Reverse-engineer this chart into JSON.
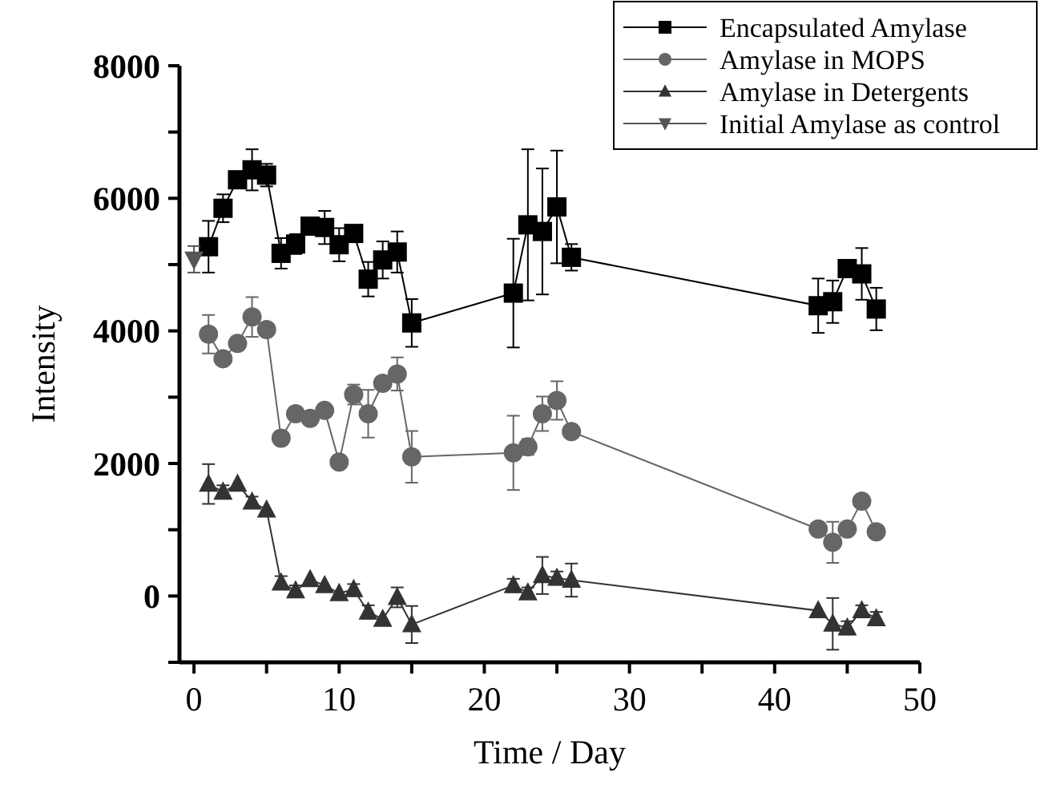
{
  "chart_data": {
    "type": "line",
    "xlabel": "Time / Day",
    "ylabel": "Intensity",
    "xlim": [
      -1,
      50
    ],
    "ylim": [
      -1000,
      8000
    ],
    "xticks": [
      0,
      {
        "value": 5,
        "label": null
      },
      10,
      {
        "value": 15,
        "label": null
      },
      20,
      {
        "value": 25,
        "label": null
      },
      30,
      {
        "value": 35,
        "label": null
      },
      40,
      {
        "value": 45,
        "label": null
      },
      50
    ],
    "yticks": [
      {
        "value": -1000,
        "label": null
      },
      0,
      {
        "value": 1000,
        "label": null
      },
      2000,
      {
        "value": 3000,
        "label": null
      },
      4000,
      {
        "value": 5000,
        "label": null
      },
      6000,
      {
        "value": 7000,
        "label": null
      },
      8000
    ],
    "legend": "top right",
    "grid": false,
    "series": [
      {
        "name": "Encapsulated Amylase",
        "color": "#000000",
        "marker": "square",
        "x": [
          1,
          2,
          3,
          4,
          5,
          6,
          7,
          8,
          9,
          10,
          11,
          12,
          13,
          14,
          15,
          22,
          23,
          24,
          25,
          26,
          43,
          44,
          45,
          46,
          47
        ],
        "values": [
          5270,
          5850,
          6280,
          6430,
          6350,
          5170,
          5310,
          5580,
          5560,
          5300,
          5470,
          4780,
          5070,
          5190,
          4120,
          4570,
          5600,
          5500,
          5870,
          5110,
          4380,
          4440,
          4940,
          4860,
          4330
        ],
        "errors": [
          390,
          210,
          null,
          310,
          170,
          230,
          150,
          null,
          250,
          250,
          null,
          260,
          280,
          310,
          360,
          820,
          1140,
          950,
          850,
          200,
          410,
          320,
          null,
          390,
          320
        ]
      },
      {
        "name": "Amylase in MOPS",
        "color": "#666666",
        "marker": "circle",
        "x": [
          1,
          2,
          3,
          4,
          5,
          6,
          7,
          8,
          9,
          10,
          11,
          12,
          13,
          14,
          15,
          22,
          23,
          24,
          25,
          26,
          43,
          44,
          45,
          46,
          47
        ],
        "values": [
          3950,
          3580,
          3810,
          4210,
          4020,
          2380,
          2750,
          2680,
          2800,
          2020,
          3040,
          2750,
          3210,
          3350,
          2100,
          2160,
          2250,
          2750,
          2950,
          2480,
          1010,
          810,
          1010,
          1430,
          970
        ],
        "errors": [
          290,
          null,
          100,
          300,
          null,
          100,
          null,
          80,
          null,
          null,
          150,
          360,
          null,
          250,
          390,
          560,
          120,
          260,
          290,
          80,
          null,
          310,
          null,
          null,
          null
        ]
      },
      {
        "name": "Amylase in Detergents",
        "color": "#333333",
        "marker": "triangle",
        "x": [
          1,
          2,
          3,
          4,
          5,
          6,
          7,
          8,
          9,
          10,
          11,
          12,
          13,
          14,
          15,
          22,
          23,
          24,
          25,
          26,
          43,
          44,
          45,
          46,
          47
        ],
        "values": [
          1690,
          1570,
          1690,
          1420,
          1300,
          200,
          80,
          250,
          160,
          40,
          100,
          -240,
          -350,
          -20,
          -430,
          160,
          50,
          310,
          270,
          240,
          -220,
          -420,
          -480,
          -220,
          -340
        ],
        "errors": [
          300,
          100,
          null,
          80,
          null,
          100,
          80,
          null,
          null,
          null,
          80,
          100,
          null,
          150,
          280,
          100,
          80,
          280,
          100,
          250,
          null,
          390,
          100,
          80,
          100
        ]
      },
      {
        "name": "Initial Amylase as control",
        "color": "#555555",
        "marker": "triangle-down",
        "x": [
          0
        ],
        "values": [
          5080
        ],
        "errors": [
          200
        ]
      }
    ]
  }
}
